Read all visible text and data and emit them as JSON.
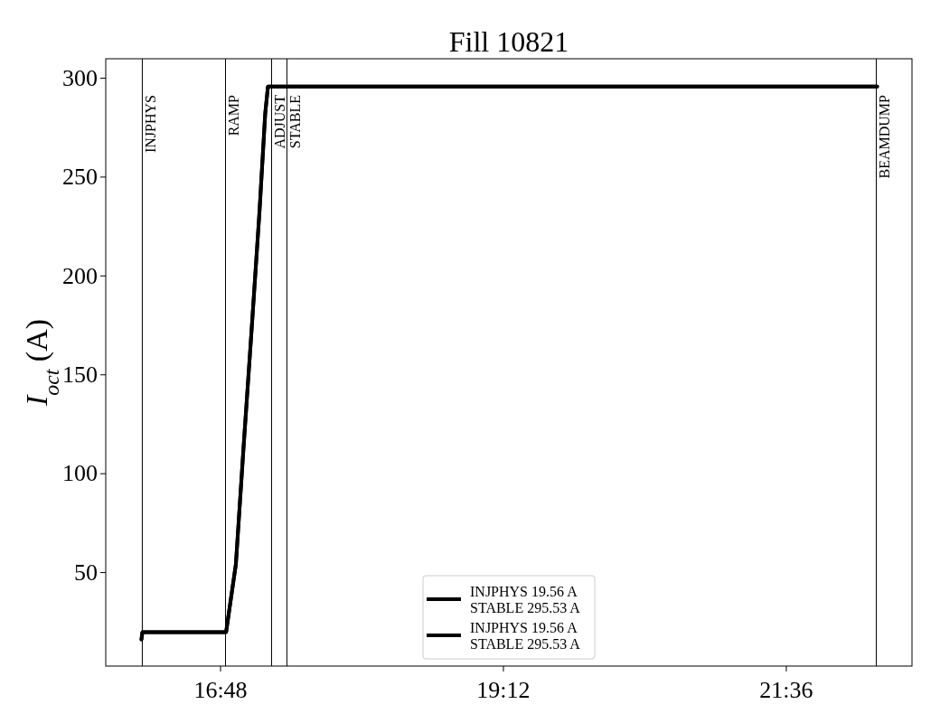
{
  "chart_data": {
    "type": "line",
    "title": "Fill 10821",
    "ylabel": "I$_{oct}$ (A)",
    "xlim": [
      15.83,
      22.67
    ],
    "ylim": [
      2.5,
      309.6
    ],
    "xticks": [
      {
        "value": 16.8,
        "label": "16:48"
      },
      {
        "value": 19.2,
        "label": "19:12"
      },
      {
        "value": 21.6,
        "label": "21:36"
      }
    ],
    "yticks": [
      50,
      100,
      150,
      200,
      250,
      300
    ],
    "series": [
      {
        "name": "INJPHYS 19.56 A\nSTABLE 295.53 A",
        "color": "#000000",
        "x": [
          16.133,
          16.141,
          16.851,
          16.934,
          16.999,
          17.068,
          17.134,
          17.183,
          17.206,
          22.375
        ],
        "values": [
          16,
          19.6,
          19.6,
          54,
          113,
          173,
          232,
          282,
          295.5,
          295.5
        ]
      },
      {
        "name": "INJPHYS 19.56 A\nSTABLE 295.53 A",
        "color": "#000000",
        "x": [
          16.133,
          16.141,
          16.851,
          16.934,
          16.999,
          17.068,
          17.134,
          17.183,
          17.206,
          22.375
        ],
        "values": [
          16,
          19.6,
          19.6,
          54,
          113,
          173,
          232,
          282,
          295.5,
          295.5
        ]
      }
    ],
    "ref_lines": [
      {
        "axis": "x",
        "value": 16.14,
        "label": "INJPHYS",
        "color": "#000000"
      },
      {
        "axis": "x",
        "value": 16.846,
        "label": "RAMP",
        "color": "#000000"
      },
      {
        "axis": "x",
        "value": 17.237,
        "label": "ADJUST",
        "color": "#000000"
      },
      {
        "axis": "x",
        "value": 17.367,
        "label": "STABLE",
        "color": "#000000"
      },
      {
        "axis": "x",
        "value": 22.367,
        "label": "BEAMDUMP",
        "color": "#000000"
      }
    ],
    "legend": "bottom",
    "grid": false,
    "marker": "none",
    "line_style": "solid"
  }
}
